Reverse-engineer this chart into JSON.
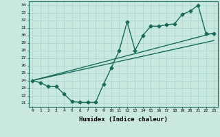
{
  "xlabel": "Humidex (Indice chaleur)",
  "bg_color": "#c8e8e0",
  "grid_color": "#a8d4cc",
  "line_color": "#1a6b5a",
  "xlim": [
    -0.5,
    23.5
  ],
  "ylim": [
    20.5,
    34.5
  ],
  "xticks": [
    0,
    1,
    2,
    3,
    4,
    5,
    6,
    7,
    8,
    9,
    10,
    11,
    12,
    13,
    14,
    15,
    16,
    17,
    18,
    19,
    20,
    21,
    22,
    23
  ],
  "yticks": [
    21,
    22,
    23,
    24,
    25,
    26,
    27,
    28,
    29,
    30,
    31,
    32,
    33,
    34
  ],
  "series1_x": [
    0,
    1,
    2,
    3,
    4,
    5,
    6,
    7,
    8,
    9,
    10,
    11,
    12,
    13,
    14,
    15,
    16,
    17,
    18,
    19,
    20,
    21,
    22,
    23
  ],
  "series1_y": [
    24.0,
    23.7,
    23.2,
    23.2,
    22.2,
    21.2,
    21.1,
    21.1,
    21.1,
    23.5,
    25.7,
    28.0,
    31.8,
    28.0,
    30.0,
    31.2,
    31.2,
    31.4,
    31.5,
    32.8,
    33.2,
    34.0,
    30.2,
    30.2
  ],
  "trend1_x": [
    0,
    23
  ],
  "trend1_y": [
    24.0,
    30.3
  ],
  "trend2_x": [
    0,
    23
  ],
  "trend2_y": [
    24.0,
    29.3
  ],
  "markersize": 2.5,
  "linewidth": 1.0
}
